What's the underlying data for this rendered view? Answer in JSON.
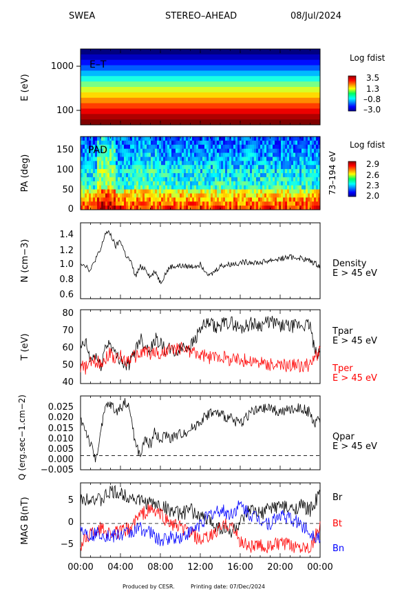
{
  "header": {
    "instrument": "SWEA",
    "spacecraft": "STEREO–AHEAD",
    "date": "08/Jul/2024"
  },
  "footer": {
    "produced_by": "Produced by CESR.",
    "printing_date": "Printing date: 07/Dec/2024"
  },
  "colors": {
    "black": "#000000",
    "red": "#ff0000",
    "blue": "#0000ff"
  },
  "chart_data": [
    {
      "type": "heatmap",
      "ylabel": "E (eV)",
      "panel_label": "E–T",
      "yscale": "log",
      "yticks": [
        "1000",
        "100"
      ],
      "colorbar": {
        "title": "Log fdist",
        "ticks": [
          "3.5",
          "1.3",
          "–0.8",
          "–3.0"
        ],
        "range": [
          -3.0,
          3.5
        ]
      },
      "note": "Energy-time spectrogram; nearly time-invariant horizontal bands from high (red, low energy) to low (blue, high energy) phase space density.",
      "energy_bands_log_fdist": [
        -3.0,
        -2.6,
        -2.1,
        -1.6,
        -1.0,
        -0.4,
        0.2,
        0.8,
        1.3,
        1.8,
        2.3,
        2.8,
        3.2,
        3.5
      ]
    },
    {
      "type": "heatmap",
      "ylabel": "PA (deg)",
      "panel_label": "PAD",
      "side_label": "73–194 eV",
      "yticks": [
        "150",
        "100",
        "50",
        "0"
      ],
      "colorbar": {
        "title": "Log fdist",
        "ticks": [
          "2.9",
          "2.6",
          "2.3",
          "2.0"
        ],
        "range": [
          2.0,
          2.9
        ]
      }
    },
    {
      "type": "line",
      "ylabel": "N (cm−3)",
      "legend": [
        "Density",
        "E > 45 eV"
      ],
      "ylim": [
        0.55,
        1.5
      ],
      "yticks": [
        "1.4",
        "1.2",
        "1.0",
        "0.8",
        "0.6"
      ],
      "series": [
        {
          "color": "#000000",
          "x": [
            0,
            0.5,
            1,
            1.5,
            2,
            2.5,
            3,
            3.5,
            4,
            4.5,
            5,
            5.5,
            6,
            6.5,
            7,
            7.5,
            8,
            8.5,
            9,
            10,
            11,
            12,
            13,
            14,
            15,
            16,
            17,
            18,
            19,
            20,
            21,
            22,
            23,
            24
          ],
          "values": [
            1.0,
            0.97,
            0.9,
            1.05,
            1.15,
            1.38,
            1.36,
            1.2,
            1.28,
            1.1,
            1.02,
            0.83,
            0.95,
            0.93,
            0.82,
            0.9,
            0.75,
            0.86,
            0.95,
            0.96,
            0.95,
            0.98,
            0.84,
            0.96,
            0.98,
            1.0,
            1.01,
            1.0,
            1.03,
            1.05,
            1.07,
            1.06,
            1.02,
            0.96
          ]
        }
      ]
    },
    {
      "type": "line",
      "ylabel": "T (eV)",
      "ylim": [
        38,
        81
      ],
      "yticks": [
        "80",
        "70",
        "60",
        "50",
        "40"
      ],
      "series": [
        {
          "name": "Tpar",
          "color": "#000000",
          "x": [
            0,
            0.5,
            1,
            1.5,
            2,
            2.5,
            3,
            3.5,
            4,
            4.5,
            5,
            5.5,
            6,
            6.5,
            7,
            7.5,
            8,
            8.5,
            9,
            9.5,
            10,
            10.5,
            11,
            11.5,
            12,
            12.5,
            13,
            13.5,
            14,
            15,
            16,
            17,
            18,
            19,
            20,
            21,
            22,
            23,
            23.5,
            24
          ],
          "values": [
            58,
            62,
            51,
            55,
            47,
            60,
            62,
            54,
            53,
            48,
            50,
            58,
            65,
            60,
            58,
            64,
            62,
            57,
            58,
            56,
            58,
            60,
            60,
            64,
            70,
            72,
            73,
            70,
            72,
            74,
            70,
            73,
            72,
            74,
            72,
            71,
            72,
            72,
            55,
            58
          ]
        },
        {
          "name": "Tper",
          "color": "#ff0000",
          "x": [
            0,
            0.5,
            1,
            1.5,
            2,
            2.5,
            3,
            3.5,
            4,
            4.5,
            5,
            5.5,
            6,
            6.5,
            7,
            7.5,
            8,
            8.5,
            9,
            9.5,
            10,
            10.5,
            11,
            11.5,
            12,
            12.5,
            13,
            13.5,
            14,
            15,
            16,
            17,
            18,
            19,
            20,
            21,
            22,
            23,
            23.5,
            24
          ],
          "values": [
            48,
            47,
            50,
            51,
            50,
            53,
            56,
            52,
            54,
            51,
            53,
            54,
            55,
            58,
            55,
            57,
            54,
            57,
            58,
            57,
            59,
            58,
            57,
            56,
            54,
            54,
            53,
            54,
            54,
            52,
            52,
            51,
            50,
            49,
            48,
            49,
            48,
            49,
            53,
            57
          ]
        }
      ],
      "legend": [
        "Tpar",
        "E > 45 eV",
        "Tper",
        "E > 45 eV"
      ]
    },
    {
      "type": "line",
      "ylabel": "Q (erg.sec−1.cm−2)",
      "legend": [
        "Qpar",
        "E > 45 eV"
      ],
      "ylim": [
        -0.0065,
        0.0275
      ],
      "yticks": [
        "0.025",
        "0.020",
        "0.015",
        "0.010",
        "0.005",
        "0.000",
        "−0.005"
      ],
      "series": [
        {
          "name": "Qpar",
          "color": "#000000",
          "x": [
            0,
            0.5,
            1,
            1.5,
            2,
            2.5,
            3,
            3.5,
            4,
            4.5,
            5,
            5.5,
            6,
            6.5,
            7,
            7.5,
            8,
            8.5,
            9,
            10,
            11,
            12,
            13,
            14,
            15,
            16,
            17,
            18,
            19,
            20,
            21,
            22,
            23,
            23.5,
            24
          ],
          "values": [
            0.017,
            0.012,
            0.005,
            -0.002,
            0.01,
            0.022,
            0.024,
            0.02,
            0.022,
            0.025,
            0.02,
            0.005,
            0.0,
            0.008,
            0.005,
            0.012,
            0.006,
            0.01,
            0.008,
            0.01,
            0.012,
            0.016,
            0.02,
            0.019,
            0.017,
            0.015,
            0.02,
            0.021,
            0.022,
            0.02,
            0.021,
            0.022,
            0.02,
            0.014,
            0.017
          ]
        }
      ]
    },
    {
      "type": "line",
      "ylabel": "MAG B(nT)",
      "ylim": [
        -7.5,
        9
      ],
      "yticks": [
        "5",
        "0",
        "−5"
      ],
      "series": [
        {
          "name": "Br",
          "color": "#000000",
          "x": [
            0,
            1,
            2,
            3,
            4,
            5,
            6,
            7,
            8,
            9,
            10,
            11,
            12,
            13,
            14,
            15,
            16,
            17,
            18,
            19,
            20,
            21,
            22,
            23,
            24
          ],
          "values": [
            5,
            6,
            5,
            7,
            6.5,
            6,
            5,
            4.5,
            4,
            3,
            2,
            3,
            1.5,
            0.5,
            -1,
            -2,
            0,
            3,
            2,
            3.5,
            4,
            3,
            4,
            3,
            6.5
          ]
        },
        {
          "name": "Bt",
          "color": "#ff0000",
          "x": [
            0,
            1,
            2,
            3,
            4,
            5,
            6,
            7,
            8,
            9,
            10,
            11,
            12,
            13,
            14,
            15,
            16,
            17,
            18,
            19,
            20,
            21,
            22,
            23,
            24
          ],
          "values": [
            -5,
            -2,
            -1,
            -2,
            -2,
            -1,
            2,
            3,
            2,
            0,
            -1,
            -2,
            -4,
            -3,
            -1,
            0,
            -4,
            -5,
            -5,
            -5,
            -4.5,
            -5,
            -5,
            -5,
            -1
          ]
        },
        {
          "name": "Bn",
          "color": "#0000ff",
          "x": [
            0,
            1,
            2,
            3,
            4,
            5,
            6,
            7,
            8,
            9,
            10,
            11,
            12,
            13,
            14,
            15,
            16,
            17,
            18,
            19,
            20,
            21,
            22,
            23,
            24
          ],
          "values": [
            -1,
            -2.5,
            -2,
            -3,
            -2.5,
            -2,
            -1,
            -2,
            -4,
            -3,
            -3,
            -2,
            0,
            2,
            3,
            2,
            4,
            2,
            1,
            0,
            2,
            1,
            0,
            -2,
            -3
          ]
        }
      ],
      "legend": [
        "Br",
        "Bt",
        "Bn"
      ],
      "xticks": [
        "00:00",
        "04:00",
        "08:00",
        "12:00",
        "16:00",
        "20:00",
        "00:00"
      ],
      "xlim": [
        0,
        24
      ]
    }
  ]
}
